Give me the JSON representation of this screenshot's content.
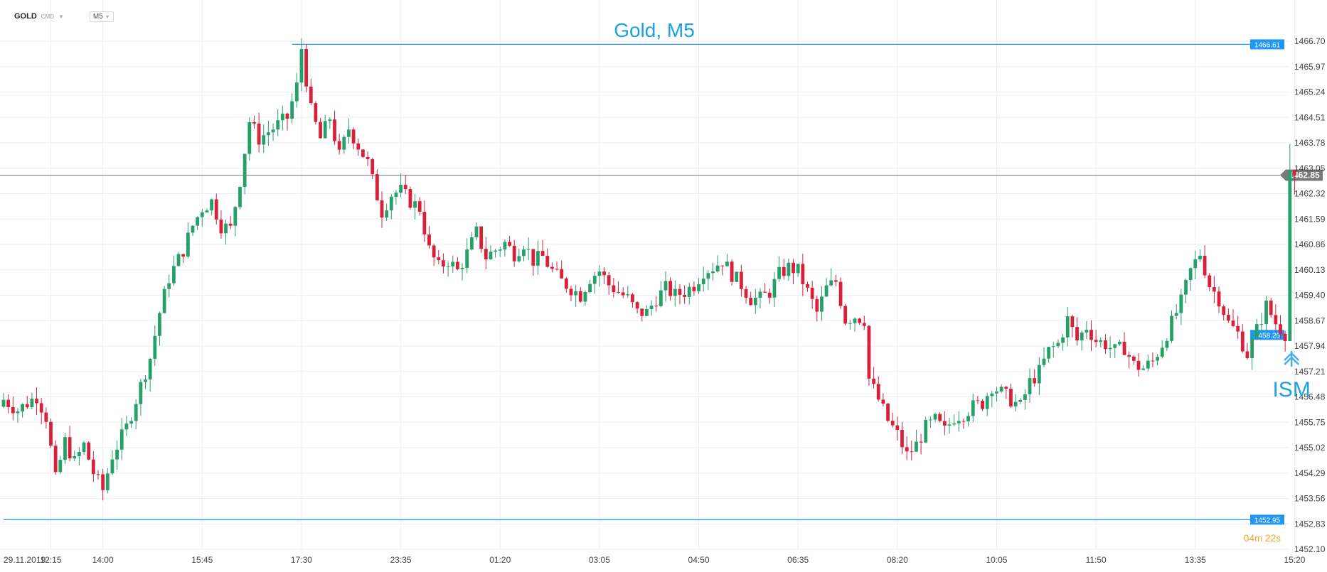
{
  "toolbar": {
    "symbol": "GOLD",
    "source": "CMD",
    "timeframe": "M5"
  },
  "timer": {
    "minutes": "04",
    "minutes_unit": "m",
    "seconds": "22",
    "seconds_unit": "s"
  },
  "colors": {
    "up": "#26a069",
    "down": "#d8203a",
    "line": "#2196f3",
    "text_blue": "#1da1e2",
    "grid": "#eeeeee",
    "current_line": "#888888"
  },
  "chart_data": {
    "type": "candlestick",
    "title": "Gold, M5",
    "ylim": [
      1452.1,
      1466.7
    ],
    "y_ticks": [
      "1466.70",
      "1465.97",
      "1465.24",
      "1464.51",
      "1463.78",
      "1463.05",
      "1462.32",
      "1461.59",
      "1460.86",
      "1460.13",
      "1459.40",
      "1458.67",
      "1457.94",
      "1457.21",
      "1456.48",
      "1455.75",
      "1455.02",
      "1454.29",
      "1453.56",
      "1452.83",
      "1452.10"
    ],
    "x_ticks": [
      {
        "label": "29.11.2019",
        "index": 0
      },
      {
        "label": "12:15",
        "index": 10
      },
      {
        "label": "14:00",
        "index": 21
      },
      {
        "label": "15:45",
        "index": 42
      },
      {
        "label": "17:30",
        "index": 63
      },
      {
        "label": "23:35",
        "index": 84
      },
      {
        "label": "01:20",
        "index": 105
      },
      {
        "label": "03:05",
        "index": 126
      },
      {
        "label": "04:50",
        "index": 147
      },
      {
        "label": "06:35",
        "index": 168
      },
      {
        "label": "08:20",
        "index": 189
      },
      {
        "label": "10:05",
        "index": 210
      },
      {
        "label": "11:50",
        "index": 231
      },
      {
        "label": "13:35",
        "index": 252
      },
      {
        "label": "15:20",
        "index": 273
      }
    ],
    "anchors": [
      [
        0,
        1456.4
      ],
      [
        3,
        1456.1
      ],
      [
        7,
        1456.5
      ],
      [
        9,
        1455.9
      ],
      [
        11,
        1454.1
      ],
      [
        13,
        1455.2
      ],
      [
        15,
        1454.6
      ],
      [
        17,
        1455.1
      ],
      [
        19,
        1454.3
      ],
      [
        21,
        1453.8
      ],
      [
        23,
        1454.8
      ],
      [
        26,
        1455.6
      ],
      [
        28,
        1456.4
      ],
      [
        31,
        1457.6
      ],
      [
        33,
        1458.9
      ],
      [
        35,
        1459.9
      ],
      [
        38,
        1460.7
      ],
      [
        40,
        1461.4
      ],
      [
        42,
        1461.9
      ],
      [
        44,
        1462.1
      ],
      [
        46,
        1461.4
      ],
      [
        48,
        1461.3
      ],
      [
        50,
        1462.7
      ],
      [
        52,
        1464.4
      ],
      [
        54,
        1463.9
      ],
      [
        56,
        1464.1
      ],
      [
        58,
        1464.3
      ],
      [
        60,
        1464.5
      ],
      [
        62,
        1465.4
      ],
      [
        63,
        1466.5
      ],
      [
        64,
        1465.6
      ],
      [
        65,
        1464.7
      ],
      [
        67,
        1463.9
      ],
      [
        69,
        1464.5
      ],
      [
        71,
        1463.4
      ],
      [
        73,
        1464.2
      ],
      [
        75,
        1463.7
      ],
      [
        77,
        1463.2
      ],
      [
        78,
        1462.7
      ],
      [
        80,
        1461.8
      ],
      [
        82,
        1462.3
      ],
      [
        84,
        1462.4
      ],
      [
        86,
        1462.1
      ],
      [
        88,
        1461.9
      ],
      [
        90,
        1460.7
      ],
      [
        92,
        1460.2
      ],
      [
        94,
        1460.4
      ],
      [
        96,
        1460.1
      ],
      [
        98,
        1460.6
      ],
      [
        100,
        1461.2
      ],
      [
        102,
        1460.5
      ],
      [
        104,
        1460.7
      ],
      [
        106,
        1460.9
      ],
      [
        108,
        1460.6
      ],
      [
        110,
        1460.9
      ],
      [
        112,
        1460.4
      ],
      [
        114,
        1460.5
      ],
      [
        116,
        1460.1
      ],
      [
        118,
        1459.8
      ],
      [
        120,
        1459.6
      ],
      [
        122,
        1459.4
      ],
      [
        124,
        1459.9
      ],
      [
        126,
        1460.1
      ],
      [
        128,
        1459.7
      ],
      [
        130,
        1459.5
      ],
      [
        132,
        1459.3
      ],
      [
        134,
        1458.9
      ],
      [
        136,
        1458.9
      ],
      [
        138,
        1459.3
      ],
      [
        140,
        1459.6
      ],
      [
        142,
        1459.4
      ],
      [
        144,
        1459.5
      ],
      [
        146,
        1459.7
      ],
      [
        148,
        1460.1
      ],
      [
        150,
        1460.2
      ],
      [
        152,
        1460.4
      ],
      [
        154,
        1460.0
      ],
      [
        156,
        1459.7
      ],
      [
        158,
        1459.3
      ],
      [
        160,
        1459.3
      ],
      [
        162,
        1459.5
      ],
      [
        164,
        1460.0
      ],
      [
        166,
        1460.2
      ],
      [
        168,
        1460.1
      ],
      [
        170,
        1459.5
      ],
      [
        172,
        1458.9
      ],
      [
        174,
        1459.6
      ],
      [
        176,
        1459.8
      ],
      [
        178,
        1458.7
      ],
      [
        180,
        1458.8
      ],
      [
        182,
        1458.7
      ],
      [
        183,
        1457.0
      ],
      [
        185,
        1456.4
      ],
      [
        187,
        1455.8
      ],
      [
        189,
        1455.4
      ],
      [
        191,
        1454.8
      ],
      [
        193,
        1455.1
      ],
      [
        195,
        1455.6
      ],
      [
        197,
        1455.8
      ],
      [
        199,
        1455.5
      ],
      [
        201,
        1455.9
      ],
      [
        203,
        1456.0
      ],
      [
        205,
        1456.2
      ],
      [
        207,
        1456.3
      ],
      [
        209,
        1456.8
      ],
      [
        211,
        1456.6
      ],
      [
        213,
        1456.4
      ],
      [
        215,
        1456.2
      ],
      [
        217,
        1456.9
      ],
      [
        219,
        1457.2
      ],
      [
        221,
        1457.8
      ],
      [
        223,
        1458.0
      ],
      [
        225,
        1458.7
      ],
      [
        227,
        1458.1
      ],
      [
        229,
        1458.5
      ],
      [
        231,
        1458.1
      ],
      [
        233,
        1458.0
      ],
      [
        235,
        1457.8
      ],
      [
        237,
        1457.9
      ],
      [
        239,
        1457.4
      ],
      [
        241,
        1457.3
      ],
      [
        243,
        1457.5
      ],
      [
        245,
        1458.0
      ],
      [
        247,
        1458.6
      ],
      [
        249,
        1459.2
      ],
      [
        251,
        1460.1
      ],
      [
        253,
        1460.6
      ],
      [
        255,
        1459.7
      ],
      [
        257,
        1459.3
      ],
      [
        259,
        1458.6
      ],
      [
        261,
        1458.3
      ],
      [
        263,
        1457.7
      ],
      [
        265,
        1458.4
      ],
      [
        267,
        1459.1
      ],
      [
        269,
        1458.6
      ],
      [
        271,
        1458.3
      ],
      [
        272,
        1463.0
      ],
      [
        273,
        1462.85
      ]
    ],
    "levels": [
      {
        "value": 1466.61,
        "label": "1466.61",
        "from_index": 61
      },
      {
        "value": 1452.95,
        "label": "1452.95",
        "from_index": 0
      }
    ],
    "sloped_level": {
      "from_index": 271,
      "from_value": 1458.3,
      "to_value": 1458.26,
      "label": "1458.26"
    },
    "current_price": {
      "value": 1462.85,
      "label": "1462.85"
    },
    "annotation": {
      "text": "ISM",
      "index": 271
    }
  }
}
